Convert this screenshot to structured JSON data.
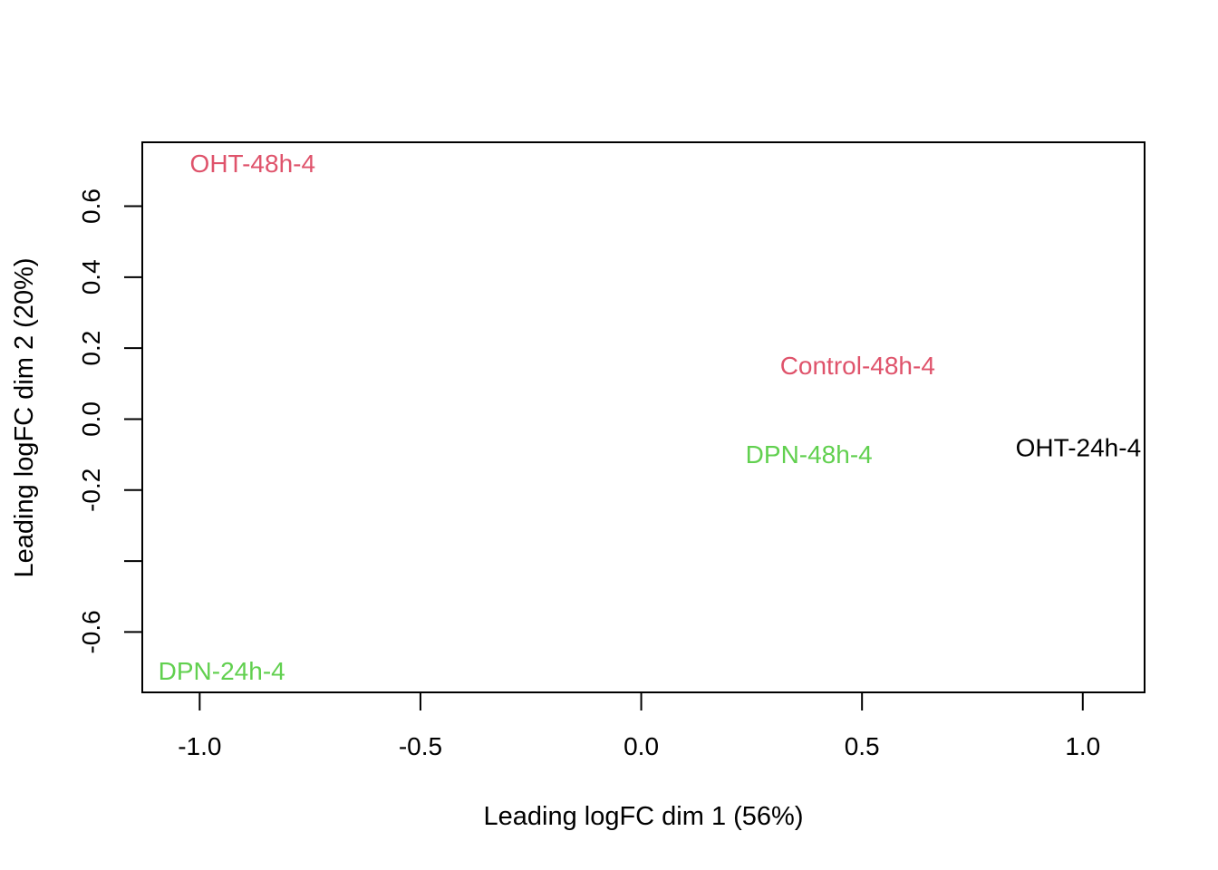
{
  "chart_data": {
    "type": "scatter",
    "title": "",
    "xlabel": "Leading logFC dim 1 (56%)",
    "ylabel": "Leading logFC dim 2 (20%)",
    "xlim": [
      -1.13,
      1.14
    ],
    "ylim": [
      -0.77,
      0.78
    ],
    "grid": false,
    "x_ticks": [
      {
        "value": -1.0,
        "label": "-1.0"
      },
      {
        "value": -0.5,
        "label": "-0.5"
      },
      {
        "value": 0.0,
        "label": "0.0"
      },
      {
        "value": 0.5,
        "label": "0.5"
      },
      {
        "value": 1.0,
        "label": "1.0"
      }
    ],
    "y_ticks": [
      {
        "value": 0.6,
        "label": "0.6"
      },
      {
        "value": 0.4,
        "label": "0.4"
      },
      {
        "value": 0.2,
        "label": "0.2"
      },
      {
        "value": 0.0,
        "label": "0.0"
      },
      {
        "value": -0.2,
        "label": "-0.2"
      },
      {
        "value": -0.4,
        "label": ""
      },
      {
        "value": -0.6,
        "label": "-0.6"
      }
    ],
    "points": [
      {
        "label": "OHT-48h-4",
        "x": -0.88,
        "y": 0.72,
        "color": "#DF536B"
      },
      {
        "label": "Control-48h-4",
        "x": 0.49,
        "y": 0.15,
        "color": "#DF536B"
      },
      {
        "label": "DPN-48h-4",
        "x": 0.38,
        "y": -0.1,
        "color": "#61D04F"
      },
      {
        "label": "OHT-24h-4",
        "x": 0.99,
        "y": -0.08,
        "color": "#000000"
      },
      {
        "label": "DPN-24h-4",
        "x": -0.95,
        "y": -0.71,
        "color": "#61D04F"
      }
    ]
  }
}
